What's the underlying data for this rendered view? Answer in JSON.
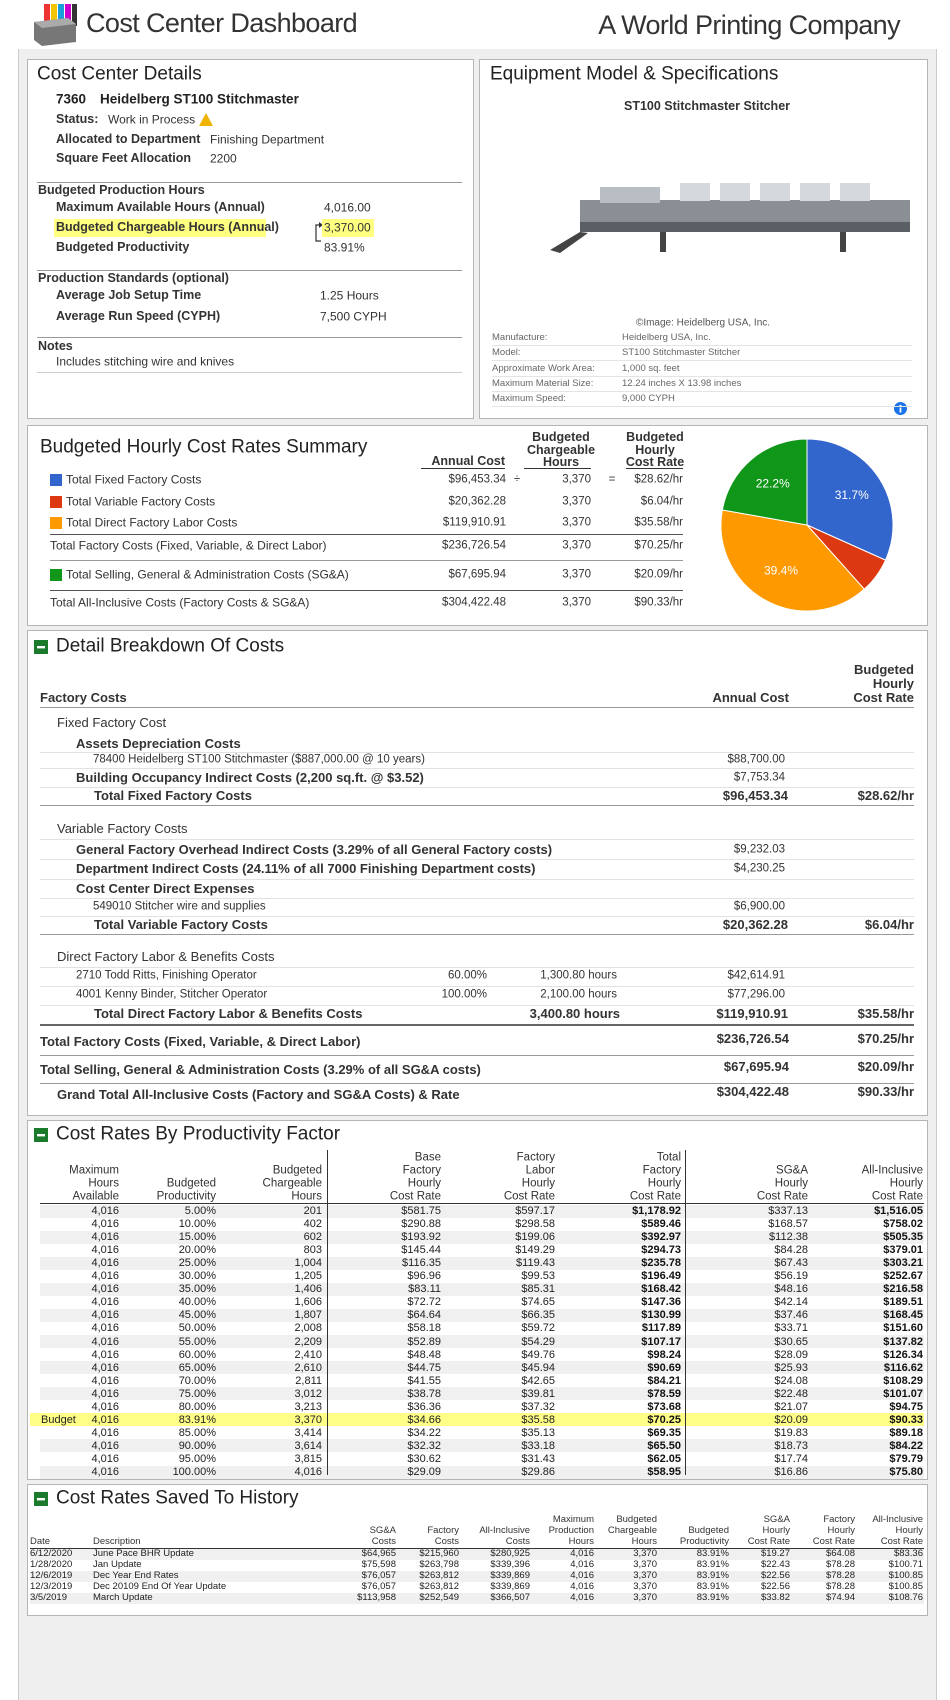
{
  "header": {
    "title": "Cost Center Dashboard",
    "company": "A World Printing Company"
  },
  "details": {
    "title": "Cost Center Details",
    "id": "7360",
    "name": "Heidelberg ST100 Stitchmaster",
    "status_label": "Status:",
    "status": "Work in Process",
    "fields": [
      [
        "Allocated to Department",
        "Finishing Department"
      ],
      [
        "Square Feet Allocation",
        "2200"
      ]
    ],
    "hours_title": "Budgeted Production Hours",
    "hours": [
      [
        "Maximum Available Hours (Annual)",
        "4,016.00"
      ],
      [
        "Budgeted Chargeable Hours (Annual)",
        "3,370.00"
      ],
      [
        "Budgeted Productivity",
        "83.91%"
      ]
    ],
    "standards_title": "Production Standards  (optional)",
    "standards": [
      [
        "Average Job Setup Time",
        "1.25 Hours"
      ],
      [
        "Average Run Speed  (CYPH)",
        "7,500 CYPH"
      ]
    ],
    "notes_title": "Notes",
    "notes": "Includes stitching wire and knives"
  },
  "equipment": {
    "title": "Equipment Model & Specifications",
    "model": "ST100 Stitchmaster Stitcher",
    "credit": "©Image: Heidelberg USA, Inc.",
    "specs": [
      [
        "Manufacture:",
        "Heidelberg USA, Inc."
      ],
      [
        "Model:",
        "ST100 Stitchmaster Stitcher"
      ],
      [
        "Approximate Work Area:",
        "1,000 sq. feet"
      ],
      [
        "Maximum Material Size:",
        "12.24 inches X 13.98 inches"
      ],
      [
        "Maximum Speed:",
        "9,000 CYPH"
      ]
    ]
  },
  "summary": {
    "title": "Budgeted Hourly Cost Rates Summary",
    "columns": [
      [
        "Annual Cost"
      ],
      [
        "Budgeted",
        "Chargeable",
        "Hours"
      ],
      [
        "Budgeted",
        "Hourly",
        "Cost Rate"
      ]
    ],
    "divide": "÷",
    "equals": "=",
    "rows": [
      [
        "$96,453.34",
        "3,370",
        "$28.62/hr"
      ],
      [
        "$20,362.28",
        "3,370",
        "$6.04/hr"
      ],
      [
        "$119,910.91",
        "3,370",
        "$35.58/hr"
      ],
      [
        "$236,726.54",
        "3,370",
        "$70.25/hr"
      ],
      [
        "$67,695.94",
        "3,370",
        "$20.09/hr"
      ],
      [
        "$304,422.48",
        "3,370",
        "$90.33/hr"
      ]
    ],
    "totals": [
      "Total Factory Costs (Fixed, Variable, & Direct Labor)",
      "Total All-Inclusive Costs (Factory Costs & SG&A)"
    ],
    "chart_data": {
      "type": "pie",
      "categories": [
        "Total Fixed Factory Costs",
        "Total Variable Factory Costs",
        "Total Direct Factory Labor Costs",
        "Total Selling, General & Administration Costs (SG&A)"
      ],
      "values": [
        31.7,
        6.7,
        39.4,
        22.2
      ],
      "value_labels": [
        "31.7%",
        null,
        "39.4%",
        "22.2%"
      ],
      "colors": [
        "#3366cc",
        "#dc3912",
        "#ff9900",
        "#109618"
      ]
    }
  },
  "breakdown": {
    "title": "Detail Breakdown Of Costs",
    "heading": "Factory Costs",
    "col_annual": "Annual Cost",
    "col_rate": [
      "Budgeted",
      "Hourly",
      "Cost Rate"
    ],
    "fixed": {
      "title": "Fixed Factory Cost",
      "assets": "Assets Depreciation Costs",
      "asset_item": "78400 Heidelberg ST100 Stitchmaster  ($887,000.00 @ 10 years)",
      "asset_cost": "$88,700.00",
      "occupancy": "Building Occupancy Indirect Costs (2,200 sq.ft. @ $3.52)",
      "occupancy_cost": "$7,753.34",
      "total": "Total Fixed Factory Costs",
      "total_cost": "$96,453.34",
      "total_rate": "$28.62/hr"
    },
    "variable": {
      "title": "Variable Factory Costs",
      "overhead": "General Factory Overhead Indirect Costs (3.29% of all General Factory costs)",
      "overhead_cost": "$9,232.03",
      "dept": "Department Indirect Costs (24.11% of all 7000  Finishing Department costs)",
      "dept_cost": "$4,230.25",
      "direct": "Cost Center Direct Expenses",
      "direct_item": "549010 Stitcher wire and supplies",
      "direct_item_cost": "$6,900.00",
      "total": "Total Variable Factory Costs",
      "total_cost": "$20,362.28",
      "total_rate": "$6.04/hr"
    },
    "labor": {
      "title": "Direct Factory Labor & Benefits Costs",
      "items": [
        [
          "2710 Todd Ritts, Finishing Operator",
          "60.00%",
          "1,300.80 hours",
          "$42,614.91"
        ],
        [
          "4001 Kenny Binder, Stitcher Operator",
          "100.00%",
          "2,100.00 hours",
          "$77,296.00"
        ]
      ],
      "total": "Total Direct Factory Labor & Benefits Costs",
      "total_hours": "3,400.80 hours",
      "total_cost": "$119,910.91",
      "total_rate": "$35.58/hr"
    },
    "totals": [
      [
        "Total Factory Costs (Fixed, Variable, & Direct Labor)",
        "$236,726.54",
        "$70.25/hr"
      ],
      [
        "Total Selling, General & Administration Costs (3.29% of all SG&A costs)",
        "$67,695.94",
        "$20.09/hr"
      ],
      [
        "Grand Total All-Inclusive Costs (Factory and SG&A Costs) & Rate",
        "$304,422.48",
        "$90.33/hr"
      ]
    ]
  },
  "productivity": {
    "title": "Cost Rates By Productivity Factor",
    "columns": [
      [
        "Maximum",
        "Hours",
        "Available"
      ],
      [
        "Budgeted",
        "Productivity"
      ],
      [
        "Budgeted",
        "Chargeable",
        "Hours"
      ],
      [
        "Base",
        "Factory",
        "Hourly",
        "Cost Rate"
      ],
      [
        "Factory",
        "Labor",
        "Hourly",
        "Cost Rate"
      ],
      [
        "Total",
        "Factory",
        "Hourly",
        "Cost Rate"
      ],
      [
        "SG&A",
        "Hourly",
        "Cost Rate"
      ],
      [
        "All-Inclusive",
        "Hourly",
        "Cost Rate"
      ]
    ],
    "budget": {
      "label": "Budget",
      "row": 16
    },
    "rows": [
      [
        "4,016",
        "5.00%",
        "201",
        "$581.75",
        "$597.17",
        "$1,178.92",
        "$337.13",
        "$1,516.05"
      ],
      [
        "4,016",
        "10.00%",
        "402",
        "$290.88",
        "$298.58",
        "$589.46",
        "$168.57",
        "$758.02"
      ],
      [
        "4,016",
        "15.00%",
        "602",
        "$193.92",
        "$199.06",
        "$392.97",
        "$112.38",
        "$505.35"
      ],
      [
        "4,016",
        "20.00%",
        "803",
        "$145.44",
        "$149.29",
        "$294.73",
        "$84.28",
        "$379.01"
      ],
      [
        "4,016",
        "25.00%",
        "1,004",
        "$116.35",
        "$119.43",
        "$235.78",
        "$67.43",
        "$303.21"
      ],
      [
        "4,016",
        "30.00%",
        "1,205",
        "$96.96",
        "$99.53",
        "$196.49",
        "$56.19",
        "$252.67"
      ],
      [
        "4,016",
        "35.00%",
        "1,406",
        "$83.11",
        "$85.31",
        "$168.42",
        "$48.16",
        "$216.58"
      ],
      [
        "4,016",
        "40.00%",
        "1,606",
        "$72.72",
        "$74.65",
        "$147.36",
        "$42.14",
        "$189.51"
      ],
      [
        "4,016",
        "45.00%",
        "1,807",
        "$64.64",
        "$66.35",
        "$130.99",
        "$37.46",
        "$168.45"
      ],
      [
        "4,016",
        "50.00%",
        "2,008",
        "$58.18",
        "$59.72",
        "$117.89",
        "$33.71",
        "$151.60"
      ],
      [
        "4,016",
        "55.00%",
        "2,209",
        "$52.89",
        "$54.29",
        "$107.17",
        "$30.65",
        "$137.82"
      ],
      [
        "4,016",
        "60.00%",
        "2,410",
        "$48.48",
        "$49.76",
        "$98.24",
        "$28.09",
        "$126.34"
      ],
      [
        "4,016",
        "65.00%",
        "2,610",
        "$44.75",
        "$45.94",
        "$90.69",
        "$25.93",
        "$116.62"
      ],
      [
        "4,016",
        "70.00%",
        "2,811",
        "$41.55",
        "$42.65",
        "$84.21",
        "$24.08",
        "$108.29"
      ],
      [
        "4,016",
        "75.00%",
        "3,012",
        "$38.78",
        "$39.81",
        "$78.59",
        "$22.48",
        "$101.07"
      ],
      [
        "4,016",
        "80.00%",
        "3,213",
        "$36.36",
        "$37.32",
        "$73.68",
        "$21.07",
        "$94.75"
      ],
      [
        "4,016",
        "83.91%",
        "3,370",
        "$34.66",
        "$35.58",
        "$70.25",
        "$20.09",
        "$90.33"
      ],
      [
        "4,016",
        "85.00%",
        "3,414",
        "$34.22",
        "$35.13",
        "$69.35",
        "$19.83",
        "$89.18"
      ],
      [
        "4,016",
        "90.00%",
        "3,614",
        "$32.32",
        "$33.18",
        "$65.50",
        "$18.73",
        "$84.22"
      ],
      [
        "4,016",
        "95.00%",
        "3,815",
        "$30.62",
        "$31.43",
        "$62.05",
        "$17.74",
        "$79.79"
      ],
      [
        "4,016",
        "100.00%",
        "4,016",
        "$29.09",
        "$29.86",
        "$58.95",
        "$16.86",
        "$75.80"
      ]
    ]
  },
  "history": {
    "title": "Cost Rates Saved To History",
    "columns": [
      [
        "Date"
      ],
      [
        "Description"
      ],
      [
        "SG&A",
        "Costs"
      ],
      [
        "Factory",
        "Costs"
      ],
      [
        "All-Inclusive",
        "Costs"
      ],
      [
        "Maximum",
        "Production",
        "Hours"
      ],
      [
        "Budgeted",
        "Chargeable",
        "Hours"
      ],
      [
        "Budgeted",
        "Productivity"
      ],
      [
        "SG&A",
        "Hourly",
        "Cost Rate"
      ],
      [
        "Factory",
        "Hourly",
        "Cost Rate"
      ],
      [
        "All-Inclusive",
        "Hourly",
        "Cost Rate"
      ]
    ],
    "rows": [
      [
        "6/12/2020",
        "June Pace BHR Update",
        "$64,965",
        "$215,960",
        "$280,925",
        "4,016",
        "3,370",
        "83.91%",
        "$19.27",
        "$64.08",
        "$83.36"
      ],
      [
        "1/28/2020",
        "Jan Update",
        "$75,598",
        "$263,798",
        "$339,396",
        "4,016",
        "3,370",
        "83.91%",
        "$22.43",
        "$78.28",
        "$100.71"
      ],
      [
        "12/6/2019",
        "Dec Year End Rates",
        "$76,057",
        "$263,812",
        "$339,869",
        "4,016",
        "3,370",
        "83.91%",
        "$22.56",
        "$78.28",
        "$100.85"
      ],
      [
        "12/3/2019",
        "Dec 20109 End Of Year Update",
        "$76,057",
        "$263,812",
        "$339,869",
        "4,016",
        "3,370",
        "83.91%",
        "$22.56",
        "$78.28",
        "$100.85"
      ],
      [
        "3/5/2019",
        "March Update",
        "$113,958",
        "$252,549",
        "$366,507",
        "4,016",
        "3,370",
        "83.91%",
        "$33.82",
        "$74.94",
        "$108.76"
      ]
    ]
  }
}
